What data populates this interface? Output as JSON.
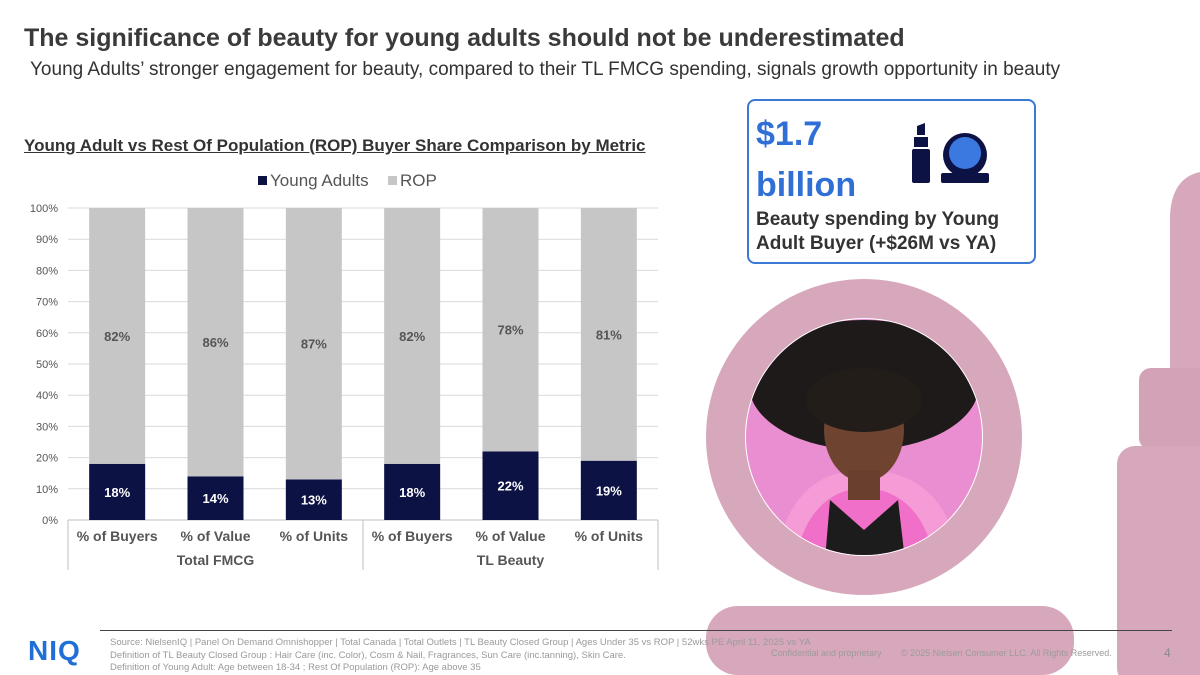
{
  "slide": {
    "title": "The significance of beauty for young adults should not be underestimated",
    "subtitle": "Young Adults’ stronger engagement for beauty, compared to their TL FMCG spending, signals growth opportunity in beauty",
    "chart_heading": "Young Adult vs Rest Of Population (ROP) Buyer Share Comparison by Metric",
    "kpi": {
      "value_line1": "$1.7",
      "value_line2": "billion",
      "description": "Beauty spending by Young Adult Buyer (+$26M vs YA)",
      "icon": "lipstick-compact-icon"
    },
    "photo": "young-adult-portrait",
    "footer": {
      "logo": "NIQ",
      "source_lines": [
        "Source: NielsenIQ | Panel On Demand Omnishopper | Total Canada | Total Outlets | TL Beauty Closed Group | Ages Under 35 vs ROP | 52wks PE April 11, 2025 vs YA",
        "Definition of TL Beauty Closed Group : Hair Care (inc. Color), Cosm & Nail, Fragrances, Sun Care (inc.tanning), Skin Care.",
        "Definition of Young Adult: Age between 18-34 ; Rest Of Population (ROP): Age above 35"
      ],
      "confidential": "Confidential and proprietary",
      "copyright": "© 2025 Nielsen Consumer LLC. All Rights Reserved.",
      "page_number": "4"
    }
  },
  "colors": {
    "young_adults": "#0d1245",
    "rop": "#c6c6c6",
    "accent_blue": "#2f6fd6",
    "decor_pink": "#d7a8bc"
  },
  "chart_data": {
    "type": "bar",
    "stacked": true,
    "percent_stacked": true,
    "legend_position": "top",
    "grid": true,
    "ylim": [
      0,
      100
    ],
    "yticks": [
      "0%",
      "10%",
      "20%",
      "30%",
      "40%",
      "50%",
      "60%",
      "70%",
      "80%",
      "90%",
      "100%"
    ],
    "groups": [
      {
        "label": "Total FMCG",
        "categories": [
          "% of Buyers",
          "% of Value",
          "% of Units"
        ]
      },
      {
        "label": "TL Beauty",
        "categories": [
          "% of Buyers",
          "% of Value",
          "% of Units"
        ]
      }
    ],
    "series": [
      {
        "name": "Young Adults",
        "color": "#0d1245",
        "values": [
          18,
          14,
          13,
          18,
          22,
          19
        ],
        "labels": [
          "18%",
          "14%",
          "13%",
          "18%",
          "22%",
          "19%"
        ]
      },
      {
        "name": "ROP",
        "color": "#c6c6c6",
        "values": [
          82,
          86,
          87,
          82,
          78,
          81
        ],
        "labels": [
          "82%",
          "86%",
          "87%",
          "82%",
          "78%",
          "81%"
        ]
      }
    ]
  }
}
